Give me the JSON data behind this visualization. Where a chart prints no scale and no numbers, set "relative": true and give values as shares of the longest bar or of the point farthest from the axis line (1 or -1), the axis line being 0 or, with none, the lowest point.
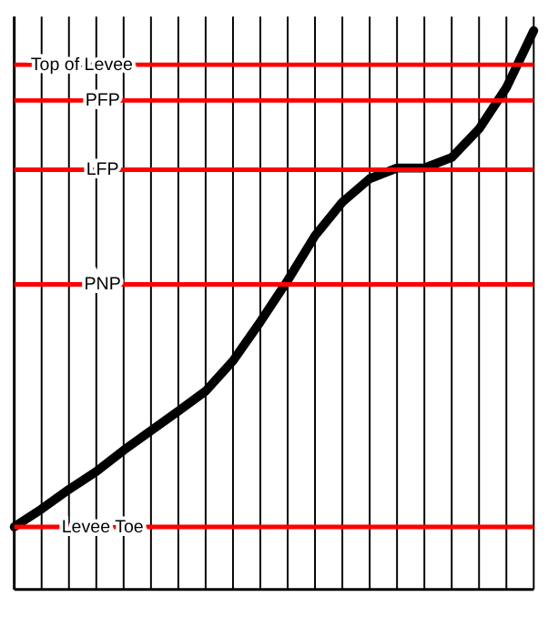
{
  "chart_data": {
    "type": "line",
    "relative": true,
    "categories": [
      null,
      null,
      null,
      null,
      null,
      null,
      null,
      null,
      null,
      null,
      null,
      null,
      null,
      null,
      null,
      null,
      null,
      null,
      null,
      null
    ],
    "series": [
      {
        "color": "#000000",
        "values": [
          0.112,
          0.144,
          0.179,
          0.211,
          0.249,
          0.284,
          0.319,
          0.355,
          0.409,
          0.479,
          0.553,
          0.633,
          0.693,
          0.735,
          0.754,
          0.754,
          0.773,
          0.824,
          0.898,
          1
        ]
      }
    ],
    "ref_lines": [
      {
        "axis": "y",
        "value": 0.939,
        "label": "Top of Levee",
        "color": "#ff0000"
      },
      {
        "axis": "y",
        "value": 0.875,
        "label": "PFP",
        "color": "#ff0000"
      },
      {
        "axis": "y",
        "value": 0.751,
        "label": "LFP",
        "color": "#ff0000"
      },
      {
        "axis": "y",
        "value": 0.546,
        "label": "PNP",
        "color": "#ff0000"
      },
      {
        "axis": "y",
        "value": 0.112,
        "label": "Levee Toe",
        "color": "#ff0000"
      }
    ],
    "grid": "x",
    "marker": "none",
    "line_style": "solid"
  }
}
